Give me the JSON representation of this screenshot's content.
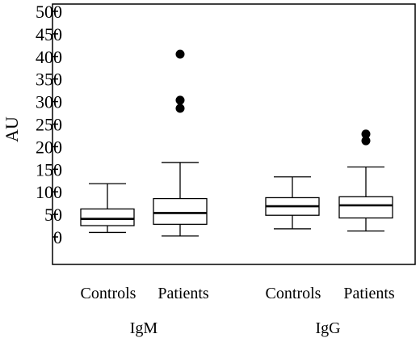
{
  "chart_data": {
    "type": "box",
    "title": "",
    "ylabel": "AU",
    "xlabel": "",
    "ylim": [
      0,
      500
    ],
    "yticks": [
      "0",
      "50",
      "100",
      "150",
      "200",
      "250",
      "300",
      "350",
      "400",
      "450",
      "500"
    ],
    "grid": false,
    "legend": "none",
    "groups": [
      {
        "name": "IgM",
        "boxes": [
          {
            "category": "Controls",
            "whisker_low": 10,
            "q1": 25,
            "median": 40,
            "q3": 62,
            "whisker_high": 118,
            "outliers": []
          },
          {
            "category": "Patients",
            "whisker_low": 2,
            "q1": 28,
            "median": 53,
            "q3": 85,
            "whisker_high": 165,
            "outliers": [
              285,
              303,
              405
            ]
          }
        ]
      },
      {
        "name": "IgG",
        "boxes": [
          {
            "category": "Controls",
            "whisker_low": 18,
            "q1": 48,
            "median": 68,
            "q3": 87,
            "whisker_high": 133,
            "outliers": []
          },
          {
            "category": "Patients",
            "whisker_low": 13,
            "q1": 42,
            "median": 70,
            "q3": 89,
            "whisker_high": 155,
            "outliers": [
              213,
              228
            ]
          }
        ]
      }
    ]
  }
}
